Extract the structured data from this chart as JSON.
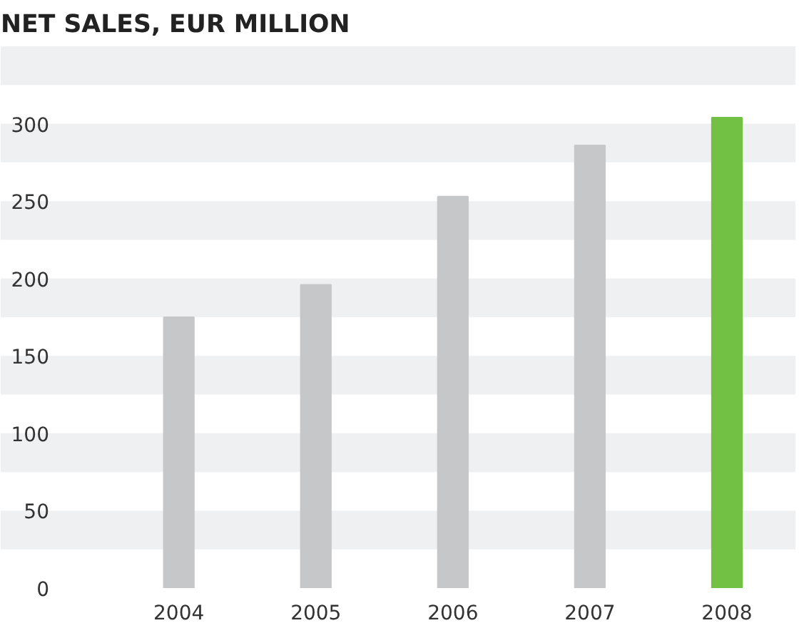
{
  "chart_data": {
    "type": "bar",
    "title": "NET SALES, EUR MILLION",
    "categories": [
      "2004",
      "2005",
      "2006",
      "2007",
      "2008"
    ],
    "values": [
      175,
      196,
      253,
      286,
      304
    ],
    "colors": [
      "#c6c7c9",
      "#c6c7c9",
      "#c6c7c9",
      "#c6c7c9",
      "#72c044"
    ],
    "ylim": [
      0,
      350
    ],
    "yticks": [
      0,
      50,
      100,
      150,
      200,
      250,
      300
    ],
    "bands": [
      {
        "axis": "y",
        "from": 25,
        "to": 50,
        "color": "#eff0f2"
      },
      {
        "axis": "y",
        "from": 75,
        "to": 100,
        "color": "#eff0f2"
      },
      {
        "axis": "y",
        "from": 125,
        "to": 150,
        "color": "#eff0f2"
      },
      {
        "axis": "y",
        "from": 175,
        "to": 200,
        "color": "#eff0f2"
      },
      {
        "axis": "y",
        "from": 225,
        "to": 250,
        "color": "#eff0f2"
      },
      {
        "axis": "y",
        "from": 275,
        "to": 300,
        "color": "#eff0f2"
      },
      {
        "axis": "y",
        "from": 325,
        "to": 350,
        "color": "#eff0f2"
      }
    ]
  }
}
